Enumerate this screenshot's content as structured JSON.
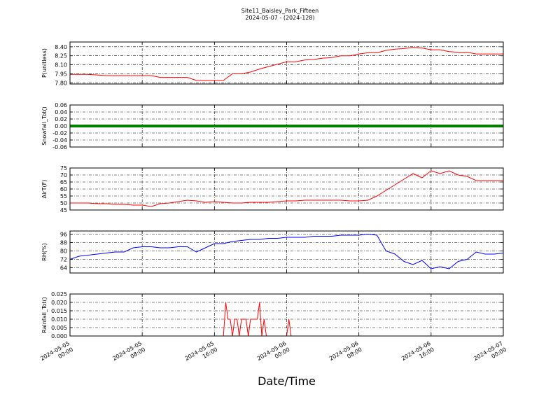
{
  "chart_data": [
    {
      "type": "line",
      "title": "Site11_Baisley_Park_Fifteen",
      "subtitle": "2024-05-07 - (2024-128)",
      "ylabel": "P(unitless)",
      "color": "#ff0000",
      "grid": true,
      "ylim": [
        7.78,
        8.48
      ],
      "yticks": [
        {
          "value": 7.8,
          "label": "7.80"
        },
        7.95,
        {
          "value": 8.1,
          "label": "8.10"
        },
        8.25,
        {
          "value": 8.4,
          "label": "8.40"
        }
      ],
      "x": [
        "2024-05-05 00:00",
        "2024-05-05 01:00",
        "2024-05-05 02:00",
        "2024-05-05 03:00",
        "2024-05-05 04:00",
        "2024-05-05 05:00",
        "2024-05-05 06:00",
        "2024-05-05 07:00",
        "2024-05-05 08:00",
        "2024-05-05 09:00",
        "2024-05-05 10:00",
        "2024-05-05 11:00",
        "2024-05-05 12:00",
        "2024-05-05 13:00",
        "2024-05-05 14:00",
        "2024-05-05 15:00",
        "2024-05-05 16:00",
        "2024-05-05 17:00",
        "2024-05-05 18:00",
        "2024-05-05 19:00",
        "2024-05-05 20:00",
        "2024-05-05 21:00",
        "2024-05-05 22:00",
        "2024-05-05 23:00",
        "2024-05-06 00:00",
        "2024-05-06 01:00",
        "2024-05-06 02:00",
        "2024-05-06 03:00",
        "2024-05-06 04:00",
        "2024-05-06 05:00",
        "2024-05-06 06:00",
        "2024-05-06 07:00",
        "2024-05-06 08:00",
        "2024-05-06 09:00",
        "2024-05-06 10:00",
        "2024-05-06 11:00",
        "2024-05-06 12:00",
        "2024-05-06 13:00",
        "2024-05-06 14:00",
        "2024-05-06 15:00",
        "2024-05-06 16:00",
        "2024-05-06 17:00",
        "2024-05-06 18:00",
        "2024-05-06 19:00",
        "2024-05-06 20:00",
        "2024-05-06 21:00",
        "2024-05-06 22:00",
        "2024-05-06 23:00",
        "2024-05-07 00:00"
      ],
      "values": [
        7.94,
        7.94,
        7.94,
        7.93,
        7.92,
        7.92,
        7.92,
        7.92,
        7.92,
        7.92,
        7.89,
        7.89,
        7.89,
        7.89,
        7.84,
        7.84,
        7.84,
        7.84,
        7.95,
        7.95,
        7.98,
        8.03,
        8.07,
        8.11,
        8.15,
        8.15,
        8.18,
        8.19,
        8.21,
        8.22,
        8.25,
        8.25,
        8.28,
        8.3,
        8.3,
        8.34,
        8.36,
        8.37,
        8.39,
        8.38,
        8.35,
        8.35,
        8.32,
        8.31,
        8.31,
        8.28,
        8.28,
        8.28,
        8.28
      ]
    },
    {
      "type": "line",
      "ylabel": "Snowfall_Tot()",
      "color": "#008000",
      "grid": true,
      "ylim": [
        -0.06,
        0.06
      ],
      "yticks": [
        -0.06,
        -0.04,
        -0.02,
        {
          "value": 0,
          "label": "0.00"
        },
        0.02,
        0.04,
        0.06
      ],
      "x": [
        "2024-05-05 00:00",
        "2024-05-05 02:00",
        "2024-05-05 04:00",
        "2024-05-05 06:00",
        "2024-05-05 08:00",
        "2024-05-05 10:00",
        "2024-05-05 12:00",
        "2024-05-05 14:00",
        "2024-05-05 16:00",
        "2024-05-05 18:00",
        "2024-05-05 20:00",
        "2024-05-05 22:00",
        "2024-05-06 00:00",
        "2024-05-06 02:00",
        "2024-05-06 04:00",
        "2024-05-06 06:00",
        "2024-05-06 08:00",
        "2024-05-06 10:00",
        "2024-05-06 12:00",
        "2024-05-06 14:00",
        "2024-05-06 16:00",
        "2024-05-06 18:00",
        "2024-05-06 20:00",
        "2024-05-06 22:00",
        "2024-05-07 00:00"
      ],
      "values": [
        0,
        0,
        0,
        0,
        0,
        0,
        0,
        0,
        0,
        0,
        0,
        0,
        0,
        0,
        0,
        0,
        0,
        0,
        0,
        0,
        0,
        0,
        0,
        0,
        0
      ]
    },
    {
      "type": "line",
      "ylabel": "AirT(F)",
      "color": "#ff0000",
      "grid": true,
      "ylim": [
        45,
        75
      ],
      "yticks": [
        45,
        50,
        55,
        60,
        65,
        70,
        75
      ],
      "x": [
        "2024-05-05 00:00",
        "2024-05-05 01:00",
        "2024-05-05 02:00",
        "2024-05-05 03:00",
        "2024-05-05 04:00",
        "2024-05-05 05:00",
        "2024-05-05 06:00",
        "2024-05-05 07:00",
        "2024-05-05 08:00",
        "2024-05-05 09:00",
        "2024-05-05 10:00",
        "2024-05-05 11:00",
        "2024-05-05 12:00",
        "2024-05-05 13:00",
        "2024-05-05 14:00",
        "2024-05-05 15:00",
        "2024-05-05 16:00",
        "2024-05-05 17:00",
        "2024-05-05 18:00",
        "2024-05-05 19:00",
        "2024-05-05 20:00",
        "2024-05-05 21:00",
        "2024-05-05 22:00",
        "2024-05-05 23:00",
        "2024-05-06 00:00",
        "2024-05-06 01:00",
        "2024-05-06 02:00",
        "2024-05-06 03:00",
        "2024-05-06 04:00",
        "2024-05-06 05:00",
        "2024-05-06 06:00",
        "2024-05-06 07:00",
        "2024-05-06 08:00",
        "2024-05-06 09:00",
        "2024-05-06 10:00",
        "2024-05-06 11:00",
        "2024-05-06 12:00",
        "2024-05-06 13:00",
        "2024-05-06 14:00",
        "2024-05-06 15:00",
        "2024-05-06 16:00",
        "2024-05-06 17:00",
        "2024-05-06 18:00",
        "2024-05-06 19:00",
        "2024-05-06 20:00",
        "2024-05-06 21:00",
        "2024-05-06 22:00",
        "2024-05-06 23:00",
        "2024-05-07 00:00"
      ],
      "values": [
        50,
        50,
        50,
        49.5,
        49.5,
        49,
        49,
        48.5,
        48.5,
        47.5,
        49.5,
        50,
        51,
        52,
        51.5,
        50.5,
        51,
        50.5,
        50,
        50,
        50.5,
        50.5,
        50.5,
        51,
        51.5,
        51.5,
        52,
        52,
        52,
        52,
        52,
        51.5,
        51.5,
        52,
        55,
        59,
        63,
        67,
        71,
        68,
        73,
        71,
        73,
        70,
        69,
        66,
        66,
        66,
        66
      ]
    },
    {
      "type": "line",
      "ylabel": "RH(%)",
      "color": "#0000ff",
      "grid": true,
      "ylim": [
        59,
        99
      ],
      "yticks": [
        64,
        72,
        80,
        88,
        96
      ],
      "x": [
        "2024-05-05 00:00",
        "2024-05-05 01:00",
        "2024-05-05 02:00",
        "2024-05-05 03:00",
        "2024-05-05 04:00",
        "2024-05-05 05:00",
        "2024-05-05 06:00",
        "2024-05-05 07:00",
        "2024-05-05 08:00",
        "2024-05-05 09:00",
        "2024-05-05 10:00",
        "2024-05-05 11:00",
        "2024-05-05 12:00",
        "2024-05-05 13:00",
        "2024-05-05 14:00",
        "2024-05-05 15:00",
        "2024-05-05 16:00",
        "2024-05-05 17:00",
        "2024-05-05 18:00",
        "2024-05-05 19:00",
        "2024-05-05 20:00",
        "2024-05-05 21:00",
        "2024-05-05 22:00",
        "2024-05-05 23:00",
        "2024-05-06 00:00",
        "2024-05-06 01:00",
        "2024-05-06 02:00",
        "2024-05-06 03:00",
        "2024-05-06 04:00",
        "2024-05-06 05:00",
        "2024-05-06 06:00",
        "2024-05-06 07:00",
        "2024-05-06 08:00",
        "2024-05-06 09:00",
        "2024-05-06 10:00",
        "2024-05-06 11:00",
        "2024-05-06 12:00",
        "2024-05-06 13:00",
        "2024-05-06 14:00",
        "2024-05-06 15:00",
        "2024-05-06 16:00",
        "2024-05-06 17:00",
        "2024-05-06 18:00",
        "2024-05-06 19:00",
        "2024-05-06 20:00",
        "2024-05-06 21:00",
        "2024-05-06 22:00",
        "2024-05-06 23:00",
        "2024-05-07 00:00"
      ],
      "values": [
        72,
        75,
        76,
        77,
        78,
        79,
        79,
        83,
        84,
        84,
        83,
        83,
        84,
        84,
        79,
        83,
        87,
        87,
        89,
        90,
        91,
        91,
        92,
        92,
        93,
        93,
        93,
        94,
        94,
        94,
        95,
        95,
        95,
        96,
        95,
        80,
        77,
        70,
        67,
        71,
        63,
        65,
        63,
        70,
        72,
        79,
        77,
        77,
        78
      ]
    },
    {
      "type": "line",
      "ylabel": "Rainfall_Tot()",
      "xlabel": "Date/Time",
      "color": "#ff0000",
      "grid": true,
      "ylim": [
        0,
        0.025
      ],
      "yticks": [
        {
          "value": 0,
          "label": "0.000"
        },
        0.005,
        {
          "value": 0.01,
          "label": "0.010"
        },
        0.015,
        {
          "value": 0.02,
          "label": "0.020"
        },
        0.025
      ],
      "xlim": [
        "2024-05-05 00:00",
        "2024-05-07 00:00"
      ],
      "xticks": [
        "2024-05-05 00:00",
        "2024-05-05 08:00",
        "2024-05-05 16:00",
        "2024-05-06 00:00",
        "2024-05-06 08:00",
        "2024-05-06 16:00",
        "2024-05-07 00:00"
      ],
      "x": [
        "2024-05-05 00:00",
        "2024-05-05 17:00",
        "2024-05-05 17:15",
        "2024-05-05 17:30",
        "2024-05-05 17:45",
        "2024-05-05 18:00",
        "2024-05-05 18:15",
        "2024-05-05 18:30",
        "2024-05-05 18:45",
        "2024-05-05 19:00",
        "2024-05-05 19:15",
        "2024-05-05 19:30",
        "2024-05-05 19:45",
        "2024-05-05 20:00",
        "2024-05-05 20:15",
        "2024-05-05 20:30",
        "2024-05-05 20:45",
        "2024-05-05 21:00",
        "2024-05-05 21:15",
        "2024-05-05 21:30",
        "2024-05-05 21:45",
        "2024-05-06 00:00",
        "2024-05-06 00:15",
        "2024-05-06 00:30",
        "2024-05-07 00:00"
      ],
      "values": [
        0,
        0,
        0.02,
        0.01,
        0.01,
        0,
        0.01,
        0.01,
        0,
        0.01,
        0.01,
        0.01,
        0,
        0.01,
        0.01,
        0.01,
        0.01,
        0.02,
        0,
        0.01,
        0,
        0,
        0.01,
        0,
        0
      ]
    }
  ]
}
